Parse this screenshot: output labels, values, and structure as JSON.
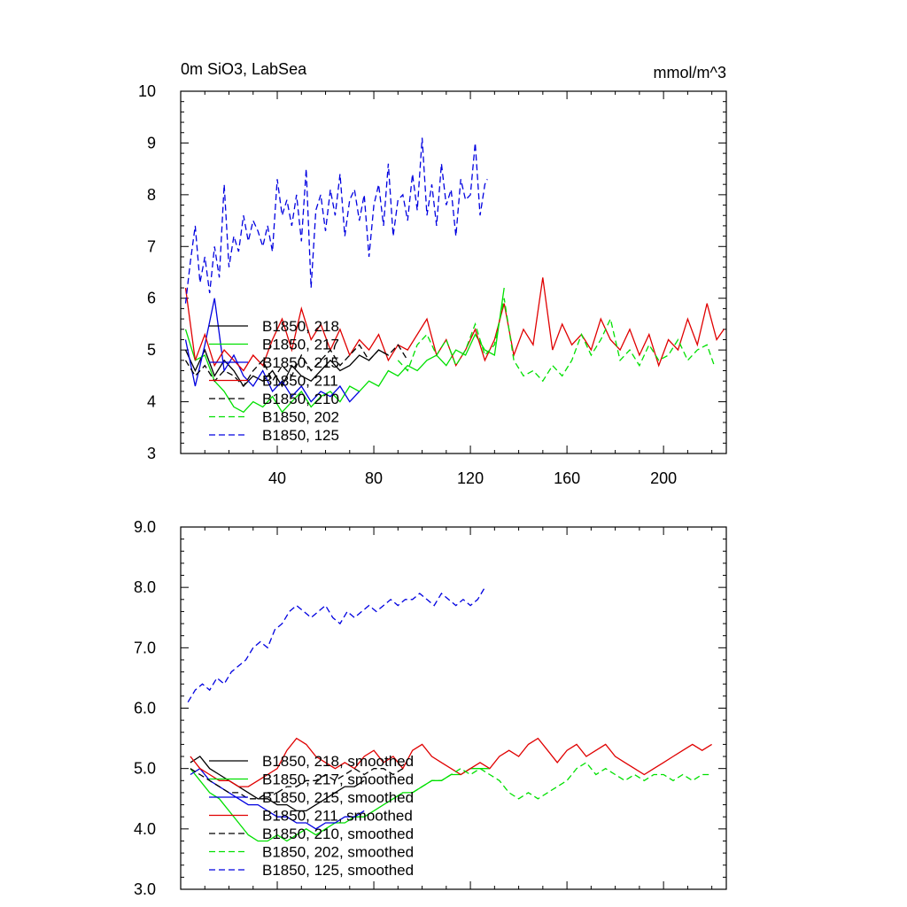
{
  "title_left": "0m SiO3, LabSea",
  "title_right": "mmol/m^3",
  "colors": {
    "black": "#000000",
    "red": "#e00000",
    "green": "#00e000",
    "blue": "#0000e0"
  },
  "chart_data": [
    {
      "type": "line",
      "xlim": [
        0,
        226
      ],
      "ylim": [
        3,
        10
      ],
      "x_ticks": [
        40,
        80,
        120,
        160,
        200
      ],
      "y_ticks": [
        3,
        4,
        5,
        6,
        7,
        8,
        9,
        10
      ],
      "y_tick_labels": [
        "3",
        "4",
        "5",
        "6",
        "7",
        "8",
        "9",
        "10"
      ],
      "legend": [
        "B1850, 218",
        "B1850, 217",
        "B1850, 215",
        "B1850, 211",
        "B1850, 210",
        "B1850, 202",
        "B1850, 125"
      ],
      "series": [
        {
          "name": "B1850, 218",
          "color": "black",
          "dash": false,
          "x": [
            2,
            6,
            10,
            14,
            18,
            22,
            26,
            30,
            34,
            38,
            42,
            46,
            50,
            54,
            58,
            62,
            66,
            70,
            74,
            78,
            82,
            86
          ],
          "y": [
            5.0,
            4.6,
            5.0,
            4.5,
            4.8,
            4.6,
            4.3,
            4.5,
            4.4,
            4.6,
            4.3,
            4.7,
            4.5,
            4.4,
            4.6,
            4.8,
            4.6,
            4.7,
            4.9,
            4.8,
            5.0,
            4.9
          ]
        },
        {
          "name": "B1850, 217",
          "color": "green",
          "dash": false,
          "x": [
            2,
            6,
            10,
            14,
            18,
            22,
            26,
            30,
            34,
            38,
            42,
            46,
            50,
            54,
            58,
            62,
            66,
            70,
            74,
            78,
            82,
            86,
            90,
            94,
            98,
            102,
            106,
            110,
            114,
            118,
            122,
            126,
            130,
            134
          ],
          "y": [
            5.4,
            4.8,
            4.9,
            4.4,
            4.2,
            3.9,
            3.8,
            4.0,
            3.9,
            4.1,
            3.8,
            4.0,
            4.2,
            3.9,
            4.1,
            4.2,
            4.0,
            4.3,
            4.2,
            4.4,
            4.3,
            4.6,
            4.5,
            4.7,
            4.6,
            4.8,
            4.9,
            4.7,
            5.0,
            4.9,
            5.3,
            5.0,
            4.9,
            6.2
          ]
        },
        {
          "name": "B1850, 215",
          "color": "blue",
          "dash": false,
          "x": [
            2,
            6,
            10,
            14,
            18,
            22,
            26,
            30,
            34,
            38,
            42,
            46,
            50,
            54,
            58,
            62,
            66,
            70,
            74
          ],
          "y": [
            5.2,
            4.3,
            5.1,
            6.0,
            4.6,
            4.9,
            4.5,
            4.3,
            4.6,
            4.2,
            4.4,
            4.1,
            4.3,
            4.0,
            4.2,
            4.1,
            4.3,
            4.0,
            4.2
          ]
        },
        {
          "name": "B1850, 211",
          "color": "red",
          "dash": false,
          "x": [
            2,
            6,
            10,
            14,
            18,
            22,
            26,
            30,
            34,
            38,
            42,
            46,
            50,
            54,
            58,
            62,
            66,
            70,
            74,
            78,
            82,
            86,
            90,
            94,
            98,
            102,
            106,
            110,
            114,
            118,
            122,
            126,
            130,
            134,
            138,
            142,
            146,
            150,
            154,
            158,
            162,
            166,
            170,
            174,
            178,
            182,
            186,
            190,
            194,
            198,
            202,
            206,
            210,
            214,
            218,
            222,
            225
          ],
          "y": [
            6.2,
            4.8,
            5.3,
            4.7,
            5.0,
            4.8,
            4.6,
            4.9,
            4.7,
            5.2,
            5.6,
            5.0,
            5.8,
            5.2,
            5.5,
            5.0,
            5.4,
            4.9,
            5.2,
            5.0,
            5.3,
            4.8,
            5.1,
            5.0,
            5.3,
            5.6,
            4.9,
            5.2,
            4.7,
            5.0,
            5.4,
            4.8,
            5.2,
            5.9,
            4.9,
            5.4,
            5.1,
            6.4,
            5.0,
            5.5,
            5.1,
            5.3,
            5.0,
            5.6,
            5.2,
            5.0,
            5.4,
            4.9,
            5.3,
            4.7,
            5.2,
            5.0,
            5.6,
            5.1,
            5.9,
            5.2,
            5.4
          ]
        },
        {
          "name": "B1850, 210",
          "color": "black",
          "dash": true,
          "x": [
            2,
            6,
            10,
            14,
            18,
            22,
            26,
            30,
            34,
            38,
            42,
            46,
            50,
            54,
            58,
            62,
            66,
            70,
            74,
            78,
            82,
            86,
            90,
            94
          ],
          "y": [
            4.8,
            4.5,
            4.7,
            4.4,
            4.6,
            4.5,
            4.3,
            4.6,
            4.8,
            4.4,
            4.7,
            4.5,
            4.9,
            4.6,
            4.8,
            5.0,
            4.7,
            4.9,
            5.1,
            4.8,
            5.0,
            4.9,
            5.1,
            4.8
          ]
        },
        {
          "name": "B1850, 202",
          "color": "green",
          "dash": true,
          "x": [
            90,
            94,
            98,
            102,
            106,
            110,
            114,
            118,
            122,
            126,
            130,
            134,
            138,
            142,
            146,
            150,
            154,
            158,
            162,
            166,
            170,
            174,
            178,
            182,
            186,
            190,
            194,
            198,
            202,
            206,
            210,
            214,
            218,
            221
          ],
          "y": [
            4.8,
            4.6,
            5.1,
            5.3,
            4.9,
            5.2,
            4.7,
            5.0,
            5.5,
            4.9,
            5.1,
            6.0,
            4.8,
            4.5,
            4.6,
            4.4,
            4.7,
            4.5,
            4.8,
            5.3,
            4.9,
            5.2,
            5.6,
            4.8,
            5.0,
            4.7,
            5.1,
            4.8,
            4.9,
            5.2,
            4.8,
            5.0,
            5.1,
            4.7
          ]
        },
        {
          "name": "B1850, 125",
          "color": "blue",
          "dash": true,
          "x": [
            2,
            4,
            6,
            8,
            10,
            12,
            14,
            16,
            18,
            20,
            22,
            24,
            26,
            28,
            30,
            32,
            34,
            36,
            38,
            40,
            42,
            44,
            46,
            48,
            50,
            52,
            54,
            56,
            58,
            60,
            62,
            64,
            66,
            68,
            70,
            72,
            74,
            76,
            78,
            80,
            82,
            84,
            86,
            88,
            90,
            92,
            94,
            96,
            98,
            100,
            102,
            104,
            106,
            108,
            110,
            112,
            114,
            116,
            118,
            120,
            122,
            124,
            126,
            127
          ],
          "y": [
            5.9,
            6.7,
            7.4,
            6.3,
            6.8,
            6.1,
            7.0,
            6.4,
            8.2,
            6.6,
            7.2,
            6.9,
            7.6,
            7.1,
            7.5,
            7.3,
            7.0,
            7.4,
            6.9,
            8.3,
            7.6,
            7.9,
            7.4,
            8.0,
            7.1,
            8.5,
            6.2,
            7.7,
            8.0,
            7.3,
            8.1,
            7.6,
            8.4,
            7.2,
            7.9,
            8.1,
            7.5,
            8.0,
            6.8,
            7.8,
            8.2,
            7.4,
            8.6,
            7.2,
            7.9,
            8.0,
            7.5,
            8.4,
            7.7,
            9.1,
            7.6,
            8.2,
            7.4,
            8.6,
            7.8,
            8.1,
            7.2,
            8.3,
            7.9,
            8.0,
            9.0,
            7.6,
            8.2,
            8.3
          ]
        }
      ]
    },
    {
      "type": "line",
      "xlim": [
        0,
        226
      ],
      "ylim": [
        3,
        9
      ],
      "x_ticks": [
        40,
        80,
        120,
        160,
        200
      ],
      "y_ticks": [
        3,
        4,
        5,
        6,
        7,
        8,
        9
      ],
      "y_tick_labels": [
        "3.0",
        "4.0",
        "5.0",
        "6.0",
        "7.0",
        "8.0",
        "9.0"
      ],
      "legend": [
        "B1850, 218, smoothed",
        "B1850, 217, smoothed",
        "B1850, 215, smoothed",
        "B1850, 211, smoothed",
        "B1850, 210, smoothed",
        "B1850, 202, smoothed",
        "B1850, 125, smoothed"
      ],
      "series": [
        {
          "name": "B1850, 218, smoothed",
          "color": "black",
          "dash": false,
          "x": [
            4,
            8,
            12,
            16,
            20,
            24,
            28,
            32,
            36,
            40,
            44,
            48,
            52,
            56,
            60,
            64,
            68,
            72,
            76
          ],
          "y": [
            5.1,
            5.2,
            5.0,
            4.9,
            4.8,
            4.7,
            4.6,
            4.5,
            4.5,
            4.4,
            4.4,
            4.3,
            4.3,
            4.4,
            4.5,
            4.6,
            4.7,
            4.7,
            4.8
          ]
        },
        {
          "name": "B1850, 217, smoothed",
          "color": "green",
          "dash": false,
          "x": [
            4,
            8,
            12,
            16,
            20,
            24,
            28,
            32,
            36,
            40,
            44,
            48,
            52,
            56,
            60,
            64,
            68,
            72,
            76,
            80,
            84,
            88,
            92,
            96,
            100,
            104,
            108,
            112,
            116,
            120,
            124,
            128
          ],
          "y": [
            5.0,
            4.8,
            4.6,
            4.5,
            4.3,
            4.1,
            3.9,
            3.8,
            3.8,
            3.9,
            3.8,
            3.9,
            4.0,
            3.9,
            4.0,
            4.1,
            4.1,
            4.2,
            4.2,
            4.3,
            4.4,
            4.5,
            4.6,
            4.6,
            4.7,
            4.8,
            4.8,
            4.9,
            4.9,
            5.0,
            5.0,
            5.0
          ]
        },
        {
          "name": "B1850, 215, smoothed",
          "color": "blue",
          "dash": false,
          "x": [
            4,
            8,
            12,
            16,
            20,
            24,
            28,
            32,
            36,
            40,
            44,
            48,
            52,
            56,
            60,
            64,
            68,
            72,
            76
          ],
          "y": [
            4.9,
            5.0,
            4.8,
            4.7,
            4.6,
            4.5,
            4.4,
            4.4,
            4.3,
            4.2,
            4.2,
            4.1,
            4.1,
            4.0,
            4.1,
            4.1,
            4.2,
            4.2,
            4.3
          ]
        },
        {
          "name": "B1850, 211, smoothed",
          "color": "red",
          "dash": false,
          "x": [
            4,
            8,
            12,
            16,
            20,
            24,
            28,
            32,
            36,
            40,
            44,
            48,
            52,
            56,
            60,
            64,
            68,
            72,
            76,
            80,
            84,
            88,
            92,
            96,
            100,
            104,
            108,
            112,
            116,
            120,
            124,
            128,
            132,
            136,
            140,
            144,
            148,
            152,
            156,
            160,
            164,
            168,
            172,
            176,
            180,
            184,
            188,
            192,
            196,
            200,
            204,
            208,
            212,
            216,
            220
          ],
          "y": [
            5.2,
            5.0,
            4.9,
            4.8,
            4.8,
            4.7,
            4.7,
            4.8,
            4.9,
            5.0,
            5.3,
            5.5,
            5.4,
            5.2,
            5.1,
            5.0,
            5.1,
            5.0,
            5.2,
            5.3,
            5.1,
            5.2,
            5.0,
            5.3,
            5.4,
            5.2,
            5.1,
            5.0,
            4.9,
            5.0,
            5.1,
            5.0,
            5.2,
            5.3,
            5.2,
            5.4,
            5.5,
            5.3,
            5.1,
            5.3,
            5.4,
            5.2,
            5.3,
            5.4,
            5.2,
            5.1,
            5.0,
            4.9,
            5.0,
            5.1,
            5.2,
            5.3,
            5.4,
            5.3,
            5.4
          ]
        },
        {
          "name": "B1850, 210, smoothed",
          "color": "black",
          "dash": true,
          "x": [
            4,
            8,
            12,
            16,
            20,
            24,
            28,
            32,
            36,
            40,
            44,
            48,
            52,
            56,
            60,
            64,
            68,
            72,
            76,
            80,
            84,
            88,
            92
          ],
          "y": [
            5.0,
            4.9,
            4.8,
            4.7,
            4.6,
            4.6,
            4.5,
            4.5,
            4.6,
            4.6,
            4.7,
            4.7,
            4.8,
            4.8,
            4.9,
            4.8,
            4.9,
            5.0,
            4.9,
            5.0,
            5.0,
            4.9,
            5.0
          ]
        },
        {
          "name": "B1850, 202, smoothed",
          "color": "green",
          "dash": true,
          "x": [
            96,
            100,
            104,
            108,
            112,
            116,
            120,
            124,
            128,
            132,
            136,
            140,
            144,
            148,
            152,
            156,
            160,
            164,
            168,
            172,
            176,
            180,
            184,
            188,
            192,
            196,
            200,
            204,
            208,
            212,
            216,
            220
          ],
          "y": [
            4.6,
            4.7,
            4.8,
            4.8,
            4.9,
            5.0,
            4.9,
            5.0,
            4.9,
            4.8,
            4.6,
            4.5,
            4.6,
            4.5,
            4.6,
            4.7,
            4.8,
            5.0,
            5.1,
            4.9,
            5.0,
            4.9,
            4.8,
            4.9,
            4.8,
            4.9,
            4.9,
            4.8,
            4.9,
            4.8,
            4.9,
            4.9
          ]
        },
        {
          "name": "B1850, 125, smoothed",
          "color": "blue",
          "dash": true,
          "x": [
            3,
            6,
            9,
            12,
            15,
            18,
            21,
            24,
            27,
            30,
            33,
            36,
            39,
            42,
            45,
            48,
            51,
            54,
            57,
            60,
            63,
            66,
            69,
            72,
            75,
            78,
            81,
            84,
            87,
            90,
            93,
            96,
            99,
            102,
            105,
            108,
            111,
            114,
            117,
            120,
            123,
            126
          ],
          "y": [
            6.1,
            6.3,
            6.4,
            6.3,
            6.5,
            6.4,
            6.6,
            6.7,
            6.8,
            7.0,
            7.1,
            7.0,
            7.3,
            7.4,
            7.6,
            7.7,
            7.6,
            7.5,
            7.6,
            7.7,
            7.5,
            7.4,
            7.6,
            7.5,
            7.6,
            7.7,
            7.6,
            7.7,
            7.8,
            7.7,
            7.8,
            7.8,
            7.9,
            7.8,
            7.7,
            7.9,
            7.8,
            7.7,
            7.8,
            7.7,
            7.8,
            8.0
          ]
        }
      ]
    }
  ]
}
